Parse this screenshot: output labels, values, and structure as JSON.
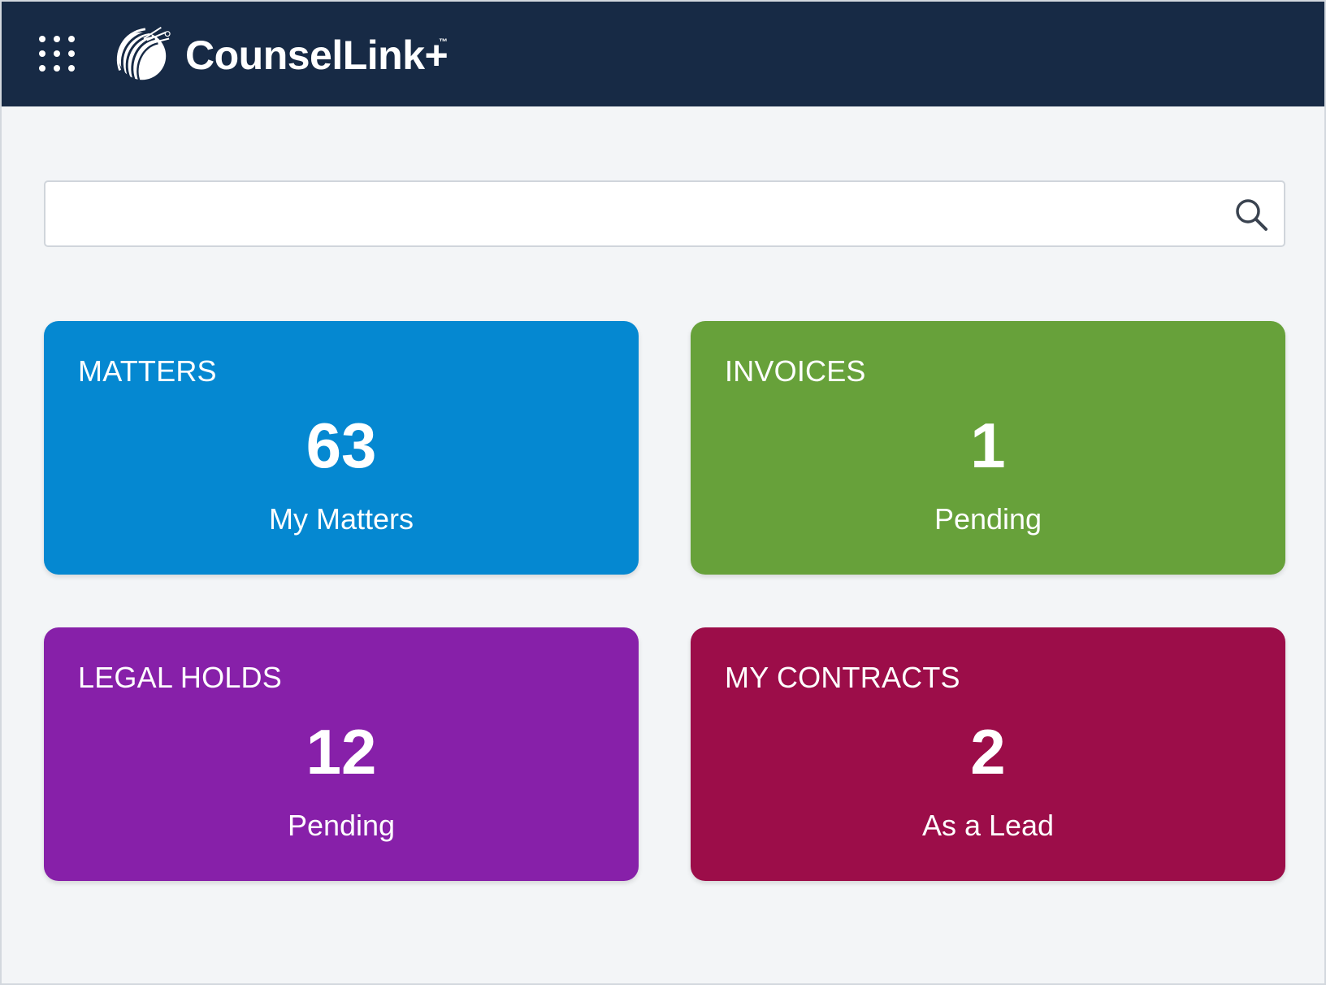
{
  "header": {
    "app_name": "CounselLink+",
    "trademark": "™",
    "background_color": "#172a45",
    "menu_icon": "app-grid-icon",
    "logo_icon": "counsellink-logo-icon"
  },
  "search": {
    "value": "",
    "placeholder": "",
    "icon": "search-icon"
  },
  "cards": [
    {
      "title": "MATTERS",
      "count": "63",
      "subtitle": "My Matters",
      "color": "#0588d1"
    },
    {
      "title": "INVOICES",
      "count": "1",
      "subtitle": "Pending",
      "color": "#67a13a"
    },
    {
      "title": "LEGAL HOLDS",
      "count": "12",
      "subtitle": "Pending",
      "color": "#8720a9"
    },
    {
      "title": "MY CONTRACTS",
      "count": "2",
      "subtitle": "As a Lead",
      "color": "#9c0d49"
    }
  ]
}
